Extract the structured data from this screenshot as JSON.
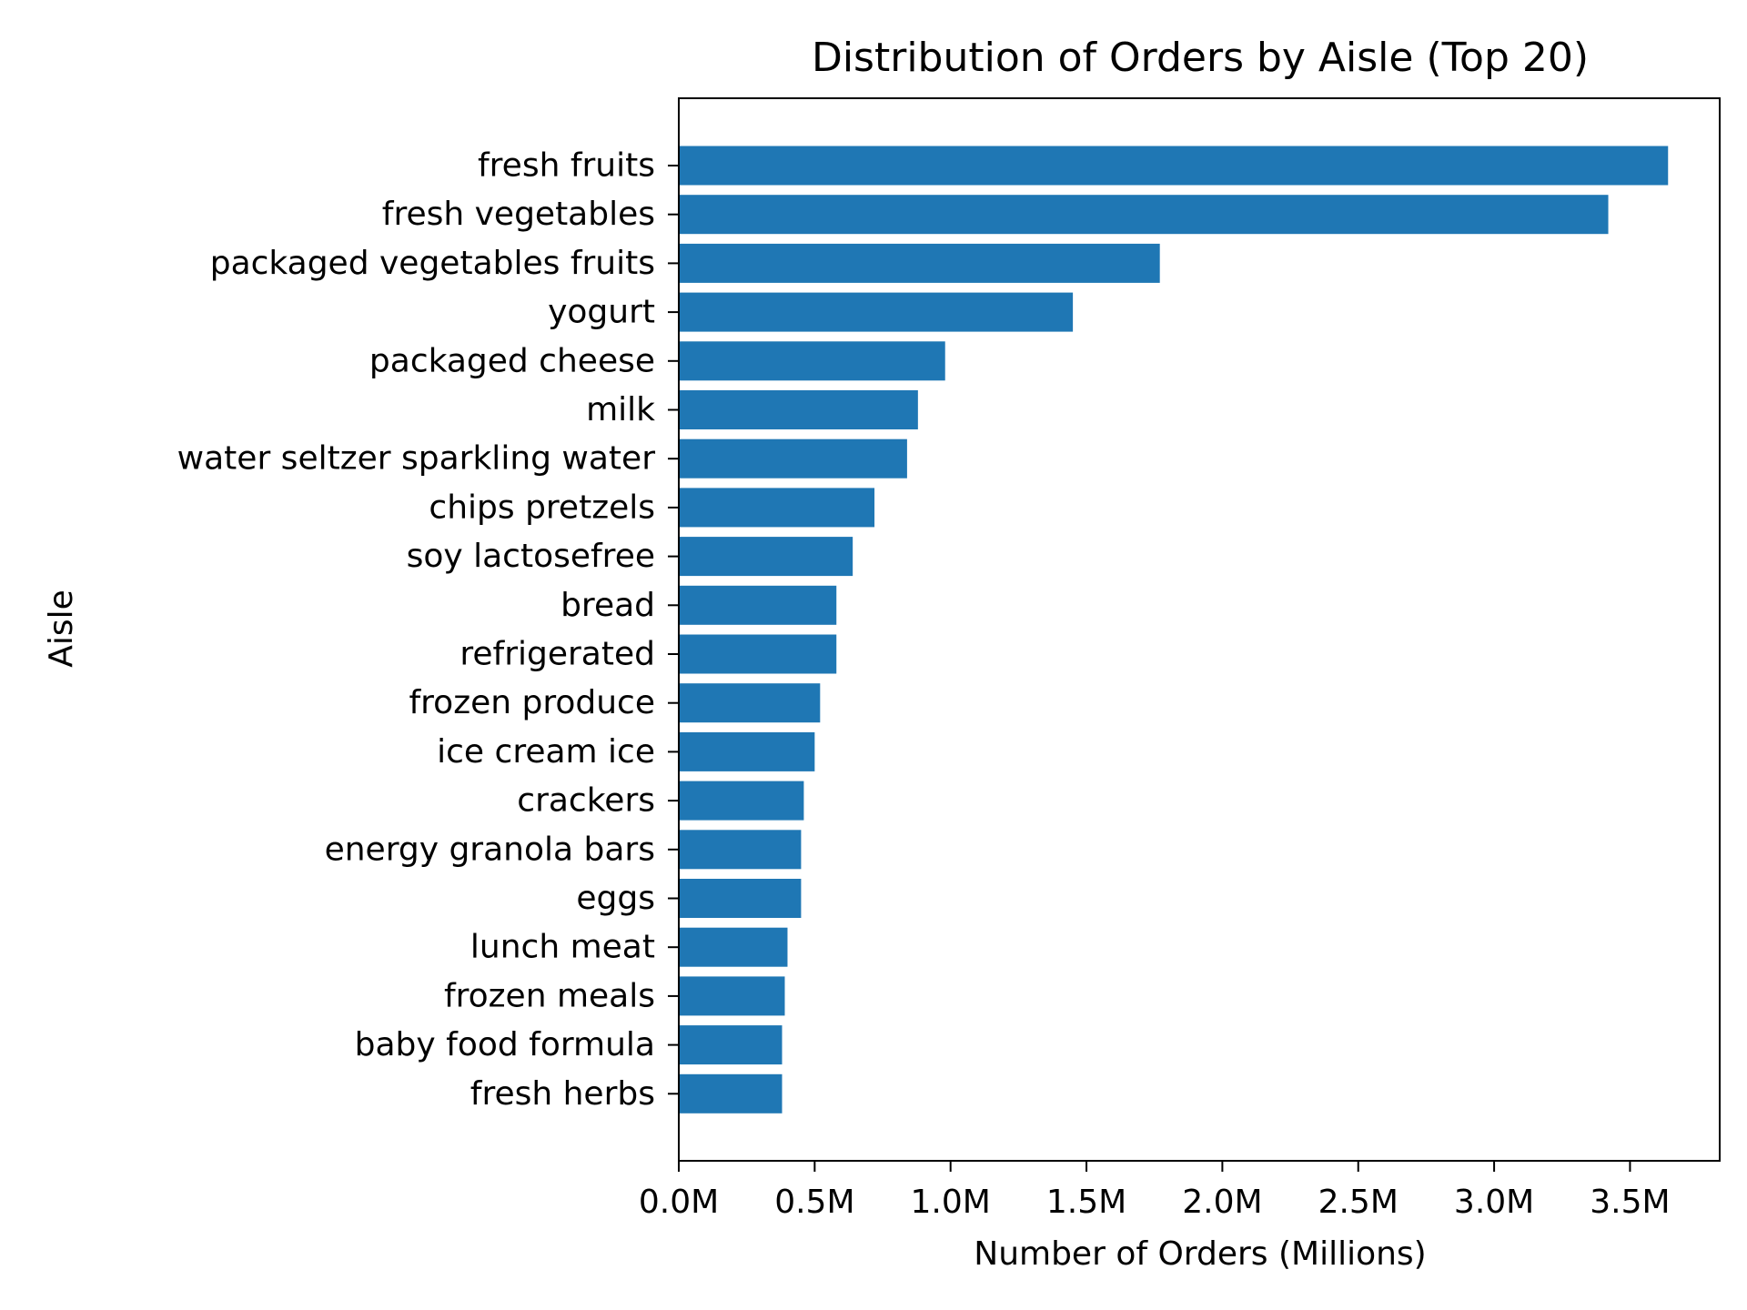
{
  "chart_data": {
    "type": "bar",
    "orientation": "horizontal",
    "title": "Distribution of Orders by Aisle (Top 20)",
    "xlabel": "Number of Orders (Millions)",
    "ylabel": "Aisle",
    "xlim": [
      0,
      3.83
    ],
    "x_ticks": [
      0.0,
      0.5,
      1.0,
      1.5,
      2.0,
      2.5,
      3.0,
      3.5
    ],
    "x_tick_labels": [
      "0.0M",
      "0.5M",
      "1.0M",
      "1.5M",
      "2.0M",
      "2.5M",
      "3.0M",
      "3.5M"
    ],
    "grid": false,
    "bar_color": "#1f77b4",
    "categories": [
      "fresh fruits",
      "fresh vegetables",
      "packaged vegetables fruits",
      "yogurt",
      "packaged cheese",
      "milk",
      "water seltzer sparkling water",
      "chips pretzels",
      "soy lactosefree",
      "bread",
      "refrigerated",
      "frozen produce",
      "ice cream ice",
      "crackers",
      "energy granola bars",
      "eggs",
      "lunch meat",
      "frozen meals",
      "baby food formula",
      "fresh herbs"
    ],
    "values": [
      3.64,
      3.42,
      1.77,
      1.45,
      0.98,
      0.88,
      0.84,
      0.72,
      0.64,
      0.58,
      0.58,
      0.52,
      0.5,
      0.46,
      0.45,
      0.45,
      0.4,
      0.39,
      0.38,
      0.38
    ]
  }
}
